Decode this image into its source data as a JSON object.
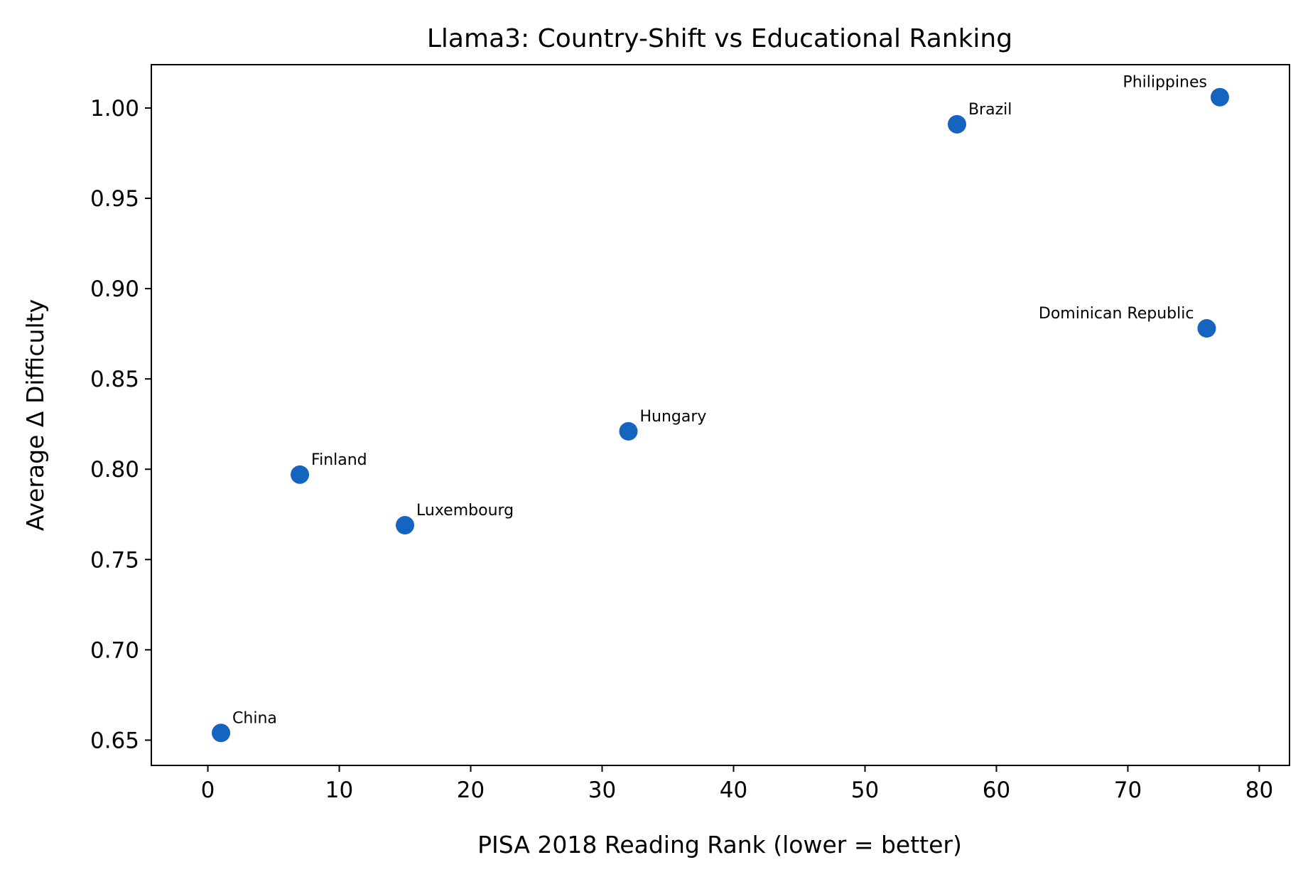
{
  "chart_data": {
    "type": "scatter",
    "title": "Llama3: Country-Shift vs Educational Ranking",
    "xlabel": "PISA 2018 Reading Rank (lower = better)",
    "ylabel": "Average Δ Difficulty",
    "xlim": [
      -4.3,
      82.3
    ],
    "ylim": [
      0.636,
      1.024
    ],
    "xticks": [
      0,
      10,
      20,
      30,
      40,
      50,
      60,
      70,
      80
    ],
    "xtick_labels": [
      "0",
      "10",
      "20",
      "30",
      "40",
      "50",
      "60",
      "70",
      "80"
    ],
    "yticks": [
      0.65,
      0.7,
      0.75,
      0.8,
      0.85,
      0.9,
      0.95,
      1.0
    ],
    "ytick_labels": [
      "0.65",
      "0.70",
      "0.75",
      "0.80",
      "0.85",
      "0.90",
      "0.95",
      "1.00"
    ],
    "grid": false,
    "marker_color": "#1565c0",
    "points": [
      {
        "label": "China",
        "x": 1,
        "y": 0.654,
        "label_side": "right"
      },
      {
        "label": "Finland",
        "x": 7,
        "y": 0.797,
        "label_side": "right"
      },
      {
        "label": "Luxembourg",
        "x": 15,
        "y": 0.769,
        "label_side": "right"
      },
      {
        "label": "Hungary",
        "x": 32,
        "y": 0.821,
        "label_side": "right"
      },
      {
        "label": "Brazil",
        "x": 57,
        "y": 0.991,
        "label_side": "right"
      },
      {
        "label": "Dominican Republic",
        "x": 76,
        "y": 0.878,
        "label_side": "left"
      },
      {
        "label": "Philippines",
        "x": 77,
        "y": 1.006,
        "label_side": "left"
      }
    ]
  }
}
